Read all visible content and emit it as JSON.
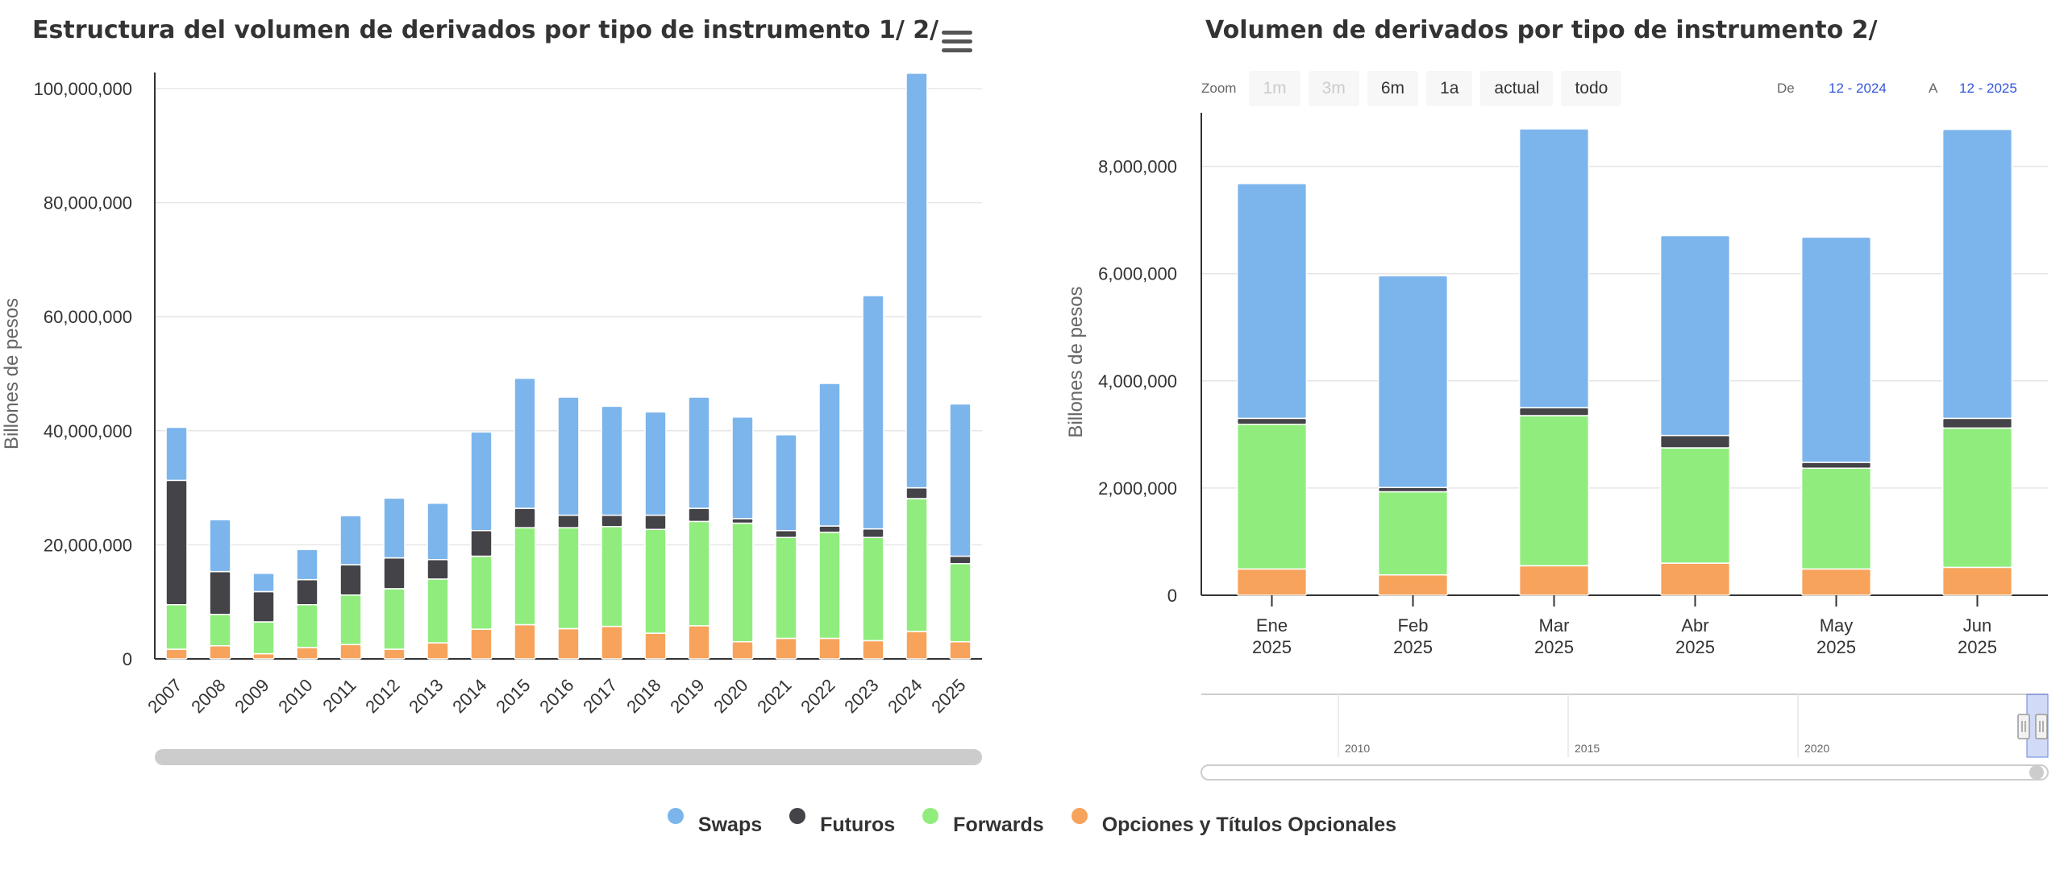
{
  "left_chart": {
    "title": "Estructura del volumen de derivados por tipo de instrumento 1/ 2/",
    "menu_icon": "hamburger-menu-icon"
  },
  "right_chart": {
    "title": "Volumen de derivados por tipo de instrumento 2/",
    "menu_icon": "hamburger-menu-icon",
    "zoom": {
      "label": "Zoom",
      "buttons": [
        {
          "label": "1m",
          "enabled": false
        },
        {
          "label": "3m",
          "enabled": false
        },
        {
          "label": "6m",
          "enabled": true
        },
        {
          "label": "1a",
          "enabled": true
        },
        {
          "label": "actual",
          "enabled": true
        },
        {
          "label": "todo",
          "enabled": true
        }
      ]
    },
    "range": {
      "from_label": "De",
      "from_value": "12 - 2024",
      "to_label": "A",
      "to_value": "12 - 2025"
    },
    "navigator": {
      "years": [
        "2010",
        "2015",
        "2020"
      ]
    }
  },
  "legend": {
    "items": [
      {
        "name": "Swaps",
        "color": "#7cb5ec"
      },
      {
        "name": "Futuros",
        "color": "#434348"
      },
      {
        "name": "Forwards",
        "color": "#90ed7d"
      },
      {
        "name": "Opciones y Títulos Opcionales",
        "color": "#f7a35c"
      }
    ]
  },
  "chart_data": [
    {
      "type": "bar",
      "stacked": true,
      "title": "Estructura del volumen de derivados por tipo de instrumento 1/ 2/",
      "ylabel": "Billones de pesos",
      "xlabel": "",
      "ylim": [
        0,
        100000000
      ],
      "yticks": [
        "0",
        "20,000,000",
        "40,000,000",
        "60,000,000",
        "80,000,000",
        "100,000,000"
      ],
      "categories": [
        "2007",
        "2008",
        "2009",
        "2010",
        "2011",
        "2012",
        "2013",
        "2014",
        "2015",
        "2016",
        "2017",
        "2018",
        "2019",
        "2020",
        "2021",
        "2022",
        "2023",
        "2024",
        "2025"
      ],
      "series": [
        {
          "name": "Opciones y Títulos Opcionales",
          "color": "#f7a35c",
          "values": [
            1700000,
            2300000,
            900000,
            2000000,
            2500000,
            1700000,
            2800000,
            5200000,
            6000000,
            5300000,
            5700000,
            4500000,
            5800000,
            3000000,
            3600000,
            3600000,
            3200000,
            4800000,
            3000000
          ]
        },
        {
          "name": "Forwards",
          "color": "#90ed7d",
          "values": [
            7800000,
            5500000,
            5600000,
            7500000,
            8700000,
            10600000,
            11200000,
            12800000,
            17000000,
            17700000,
            17500000,
            18200000,
            18300000,
            20800000,
            17700000,
            18600000,
            18100000,
            23300000,
            13700000
          ]
        },
        {
          "name": "Futuros",
          "color": "#434348",
          "values": [
            21800000,
            7500000,
            5300000,
            4400000,
            5300000,
            5400000,
            3400000,
            4500000,
            3400000,
            2200000,
            2000000,
            2500000,
            2300000,
            800000,
            1200000,
            1100000,
            1500000,
            1900000,
            1300000
          ]
        },
        {
          "name": "Swaps",
          "color": "#7cb5ec",
          "values": [
            9300000,
            9100000,
            3200000,
            5300000,
            8600000,
            10500000,
            9900000,
            17300000,
            22800000,
            20700000,
            19100000,
            18100000,
            19500000,
            17800000,
            16800000,
            25000000,
            40900000,
            72700000,
            26700000
          ]
        }
      ],
      "legend": "bottom"
    },
    {
      "type": "bar",
      "stacked": true,
      "title": "Volumen de derivados por tipo de instrumento 2/",
      "ylabel": "Billones de pesos",
      "xlabel": "",
      "ylim": [
        0,
        8700000
      ],
      "yticks": [
        "0",
        "2,000,000",
        "4,000,000",
        "6,000,000",
        "8,000,000"
      ],
      "categories": [
        [
          "Ene",
          "2025"
        ],
        [
          "Feb",
          "2025"
        ],
        [
          "Mar",
          "2025"
        ],
        [
          "Abr",
          "2025"
        ],
        [
          "May",
          "2025"
        ],
        [
          "Jun",
          "2025"
        ]
      ],
      "series": [
        {
          "name": "Opciones y Títulos Opcionales",
          "color": "#f7a35c",
          "values": [
            490000,
            380000,
            550000,
            600000,
            490000,
            520000
          ]
        },
        {
          "name": "Forwards",
          "color": "#90ed7d",
          "values": [
            2700000,
            1550000,
            2800000,
            2150000,
            1880000,
            2600000
          ]
        },
        {
          "name": "Futuros",
          "color": "#434348",
          "values": [
            110000,
            80000,
            150000,
            230000,
            110000,
            180000
          ]
        },
        {
          "name": "Swaps",
          "color": "#7cb5ec",
          "values": [
            4380000,
            3950000,
            5200000,
            3730000,
            4200000,
            5390000
          ]
        }
      ],
      "legend": "bottom"
    }
  ]
}
